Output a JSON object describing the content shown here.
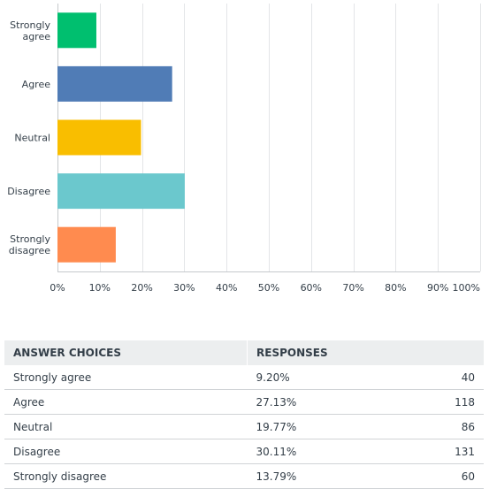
{
  "chart_data": {
    "type": "bar",
    "orientation": "horizontal",
    "categories": [
      [
        "Strongly",
        "agree"
      ],
      [
        "Agree"
      ],
      [
        "Neutral"
      ],
      [
        "Disagree"
      ],
      [
        "Strongly",
        "disagree"
      ]
    ],
    "values": [
      9.2,
      27.13,
      19.77,
      30.11,
      13.79
    ],
    "colors": [
      "#00bf6f",
      "#507cb6",
      "#f9be00",
      "#6bc8cd",
      "#ff8b4f"
    ],
    "xlim": [
      0,
      100
    ],
    "xticks": [
      "0%",
      "10%",
      "20%",
      "30%",
      "40%",
      "50%",
      "60%",
      "70%",
      "80%",
      "90%",
      "100%"
    ],
    "grid": true
  },
  "table": {
    "headers": [
      "ANSWER CHOICES",
      "RESPONSES"
    ],
    "rows": [
      {
        "choice": "Strongly agree",
        "percent": "9.20%",
        "count": "40"
      },
      {
        "choice": "Agree",
        "percent": "27.13%",
        "count": "118"
      },
      {
        "choice": "Neutral",
        "percent": "19.77%",
        "count": "86"
      },
      {
        "choice": "Disagree",
        "percent": "30.11%",
        "count": "131"
      },
      {
        "choice": "Strongly disagree",
        "percent": "13.79%",
        "count": "60"
      }
    ]
  }
}
